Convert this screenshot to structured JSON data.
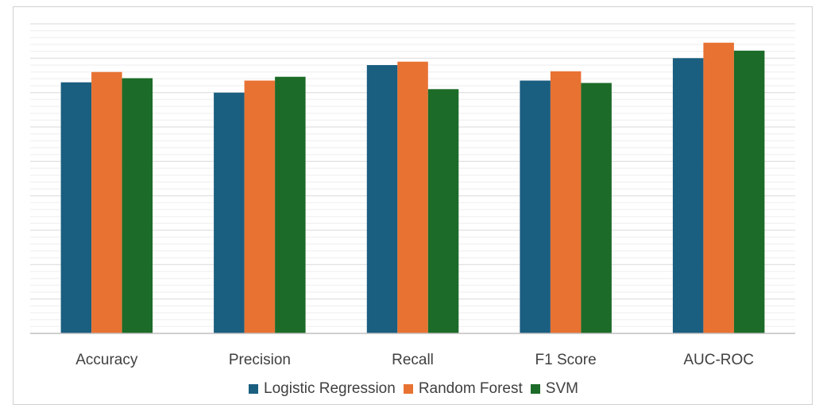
{
  "chart_data": {
    "type": "bar",
    "categories": [
      "Accuracy",
      "Precision",
      "Recall",
      "F1 Score",
      "AUC-ROC"
    ],
    "series": [
      {
        "name": "Logistic Regression",
        "color": "#1a5e80",
        "values": [
          0.73,
          0.7,
          0.78,
          0.735,
          0.8
        ]
      },
      {
        "name": "Random Forest",
        "color": "#e87232",
        "values": [
          0.76,
          0.735,
          0.79,
          0.762,
          0.845
        ]
      },
      {
        "name": "SVM",
        "color": "#1c6b28",
        "values": [
          0.742,
          0.746,
          0.71,
          0.728,
          0.822
        ]
      }
    ],
    "ylim": [
      0,
      0.9
    ],
    "grid": true,
    "legend_position": "bottom"
  }
}
